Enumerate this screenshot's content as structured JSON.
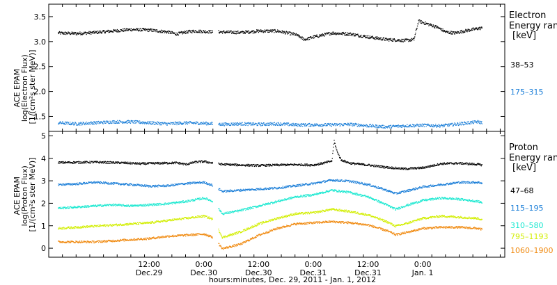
{
  "chart_data": [
    {
      "type": "scatter",
      "panel": "electron",
      "ylabel_lines": [
        "ACE EPAM",
        "log(Electron Flux)",
        "[1/(cm²s ster MeV)]"
      ],
      "ylim": [
        1.2,
        3.75
      ],
      "yticks": [
        1.5,
        2.0,
        2.5,
        3.0,
        3.5
      ],
      "ytick_labels": [
        "1.5",
        "2.0",
        "2.5",
        "3.0",
        "3.5"
      ],
      "legend_title": [
        "Electron",
        "Energy ran"
      ],
      "legend_unit": "[keV]",
      "series": [
        {
          "name": "38–53",
          "color": "#000000",
          "points": [
            [
              -8,
              3.18
            ],
            [
              -4,
              3.17
            ],
            [
              0,
              3.19
            ],
            [
              4,
              3.22
            ],
            [
              8,
              3.25
            ],
            [
              12,
              3.24
            ],
            [
              16,
              3.2
            ],
            [
              18,
              3.16
            ],
            [
              20,
              3.2
            ],
            [
              22,
              3.22
            ],
            [
              24,
              3.21
            ],
            [
              28,
              3.2
            ],
            [
              32,
              3.19
            ],
            [
              36,
              3.22
            ],
            [
              40,
              3.22
            ],
            [
              44,
              3.15
            ],
            [
              46,
              3.05
            ],
            [
              48,
              3.1
            ],
            [
              52,
              3.18
            ],
            [
              56,
              3.16
            ],
            [
              60,
              3.1
            ],
            [
              64,
              3.05
            ],
            [
              68,
              3.03
            ],
            [
              70,
              3.05
            ],
            [
              71,
              3.42
            ],
            [
              73,
              3.36
            ],
            [
              75,
              3.3
            ],
            [
              77,
              3.2
            ],
            [
              79,
              3.18
            ],
            [
              81,
              3.22
            ],
            [
              84,
              3.27
            ],
            [
              85,
              3.28
            ]
          ],
          "gaps_x": [
            26.5
          ]
        },
        {
          "name": "175–315",
          "color": "#1c7fd8",
          "points": [
            [
              -8,
              1.38
            ],
            [
              -4,
              1.36
            ],
            [
              0,
              1.38
            ],
            [
              4,
              1.4
            ],
            [
              8,
              1.4
            ],
            [
              12,
              1.38
            ],
            [
              16,
              1.36
            ],
            [
              20,
              1.38
            ],
            [
              24,
              1.37
            ],
            [
              28,
              1.35
            ],
            [
              32,
              1.36
            ],
            [
              36,
              1.35
            ],
            [
              40,
              1.36
            ],
            [
              44,
              1.34
            ],
            [
              48,
              1.34
            ],
            [
              52,
              1.34
            ],
            [
              56,
              1.35
            ],
            [
              60,
              1.32
            ],
            [
              64,
              1.3
            ],
            [
              68,
              1.32
            ],
            [
              72,
              1.33
            ],
            [
              76,
              1.32
            ],
            [
              80,
              1.36
            ],
            [
              84,
              1.4
            ],
            [
              85,
              1.38
            ]
          ],
          "gaps_x": [
            26.5
          ]
        }
      ]
    },
    {
      "type": "scatter",
      "panel": "proton",
      "ylabel_lines": [
        "ACE EPAM",
        "log(Proton Flux)",
        "[1/(cm²s ster MeV)]"
      ],
      "ylim": [
        -0.4,
        5.2
      ],
      "yticks": [
        0,
        1,
        2,
        3,
        4,
        5
      ],
      "ytick_labels": [
        "0",
        "1",
        "2",
        "3",
        "4",
        "5"
      ],
      "legend_title": [
        "Proton",
        "Energy ran"
      ],
      "legend_unit": "[keV]",
      "series": [
        {
          "name": "47–68",
          "color": "#000000",
          "points": [
            [
              -8,
              3.83
            ],
            [
              0,
              3.85
            ],
            [
              6,
              3.82
            ],
            [
              10,
              3.78
            ],
            [
              14,
              3.8
            ],
            [
              18,
              3.82
            ],
            [
              20,
              3.75
            ],
            [
              22,
              3.85
            ],
            [
              24,
              3.88
            ],
            [
              26,
              3.8
            ],
            [
              28,
              3.75
            ],
            [
              32,
              3.72
            ],
            [
              36,
              3.7
            ],
            [
              40,
              3.72
            ],
            [
              44,
              3.74
            ],
            [
              48,
              3.72
            ],
            [
              50,
              3.8
            ],
            [
              52,
              3.9
            ],
            [
              52.5,
              4.8
            ],
            [
              53,
              4.4
            ],
            [
              54,
              3.95
            ],
            [
              56,
              3.8
            ],
            [
              60,
              3.72
            ],
            [
              64,
              3.62
            ],
            [
              68,
              3.55
            ],
            [
              72,
              3.6
            ],
            [
              76,
              3.78
            ],
            [
              80,
              3.8
            ],
            [
              84,
              3.75
            ],
            [
              85,
              3.72
            ]
          ],
          "gaps_x": [
            26.5
          ]
        },
        {
          "name": "115–195",
          "color": "#1c7fd8",
          "points": [
            [
              -8,
              2.85
            ],
            [
              -4,
              2.88
            ],
            [
              0,
              2.95
            ],
            [
              4,
              2.9
            ],
            [
              8,
              2.85
            ],
            [
              12,
              2.78
            ],
            [
              16,
              2.8
            ],
            [
              20,
              2.9
            ],
            [
              24,
              2.95
            ],
            [
              26,
              2.8
            ],
            [
              28,
              2.55
            ],
            [
              32,
              2.6
            ],
            [
              36,
              2.65
            ],
            [
              40,
              2.7
            ],
            [
              44,
              2.8
            ],
            [
              48,
              2.9
            ],
            [
              52,
              3.05
            ],
            [
              56,
              3.0
            ],
            [
              60,
              2.85
            ],
            [
              64,
              2.6
            ],
            [
              66,
              2.45
            ],
            [
              68,
              2.55
            ],
            [
              72,
              2.75
            ],
            [
              76,
              2.85
            ],
            [
              80,
              2.95
            ],
            [
              84,
              2.95
            ],
            [
              85,
              2.92
            ]
          ],
          "gaps_x": [
            26.5
          ]
        },
        {
          "name": "310–580",
          "color": "#19e8d0",
          "points": [
            [
              -8,
              1.8
            ],
            [
              -4,
              1.85
            ],
            [
              0,
              1.9
            ],
            [
              4,
              1.95
            ],
            [
              8,
              1.9
            ],
            [
              12,
              1.95
            ],
            [
              16,
              2.0
            ],
            [
              20,
              2.1
            ],
            [
              24,
              2.25
            ],
            [
              26,
              2.1
            ],
            [
              28,
              1.55
            ],
            [
              32,
              1.7
            ],
            [
              36,
              1.9
            ],
            [
              40,
              2.1
            ],
            [
              44,
              2.3
            ],
            [
              48,
              2.4
            ],
            [
              52,
              2.6
            ],
            [
              56,
              2.5
            ],
            [
              60,
              2.3
            ],
            [
              64,
              1.95
            ],
            [
              66,
              1.75
            ],
            [
              68,
              1.9
            ],
            [
              72,
              2.15
            ],
            [
              76,
              2.25
            ],
            [
              80,
              2.2
            ],
            [
              84,
              2.1
            ],
            [
              85,
              2.05
            ]
          ],
          "gaps_x": [
            26.5
          ]
        },
        {
          "name": "795–1193",
          "color": "#d2ee00",
          "points": [
            [
              -8,
              0.9
            ],
            [
              -4,
              0.95
            ],
            [
              0,
              1.0
            ],
            [
              4,
              1.05
            ],
            [
              8,
              1.1
            ],
            [
              12,
              1.15
            ],
            [
              16,
              1.25
            ],
            [
              20,
              1.35
            ],
            [
              24,
              1.45
            ],
            [
              26,
              1.3
            ],
            [
              28,
              0.5
            ],
            [
              32,
              0.75
            ],
            [
              36,
              1.1
            ],
            [
              40,
              1.35
            ],
            [
              44,
              1.55
            ],
            [
              48,
              1.6
            ],
            [
              52,
              1.75
            ],
            [
              56,
              1.65
            ],
            [
              60,
              1.5
            ],
            [
              64,
              1.2
            ],
            [
              66,
              1.0
            ],
            [
              68,
              1.1
            ],
            [
              72,
              1.35
            ],
            [
              76,
              1.45
            ],
            [
              80,
              1.4
            ],
            [
              84,
              1.35
            ],
            [
              85,
              1.28
            ]
          ],
          "gaps_x": [
            26.5
          ]
        },
        {
          "name": "1060–1900",
          "color": "#f08a10",
          "points": [
            [
              -8,
              0.3
            ],
            [
              -4,
              0.3
            ],
            [
              0,
              0.3
            ],
            [
              4,
              0.35
            ],
            [
              8,
              0.4
            ],
            [
              12,
              0.45
            ],
            [
              16,
              0.55
            ],
            [
              20,
              0.6
            ],
            [
              24,
              0.65
            ],
            [
              26,
              0.5
            ],
            [
              28,
              0.0
            ],
            [
              32,
              0.2
            ],
            [
              36,
              0.6
            ],
            [
              40,
              0.9
            ],
            [
              44,
              1.1
            ],
            [
              48,
              1.15
            ],
            [
              52,
              1.2
            ],
            [
              56,
              1.15
            ],
            [
              60,
              1.05
            ],
            [
              64,
              0.8
            ],
            [
              66,
              0.62
            ],
            [
              68,
              0.7
            ],
            [
              72,
              0.9
            ],
            [
              76,
              0.95
            ],
            [
              80,
              0.95
            ],
            [
              84,
              0.9
            ],
            [
              85,
              0.85
            ]
          ],
          "gaps_x": [
            26.5
          ]
        }
      ]
    }
  ],
  "x_axis": {
    "range_hours_from_dec29": [
      -10,
      90
    ],
    "ticks": [
      {
        "x": 12,
        "time": "12:00",
        "date": "Dec.29"
      },
      {
        "x": 24,
        "time": "0:00",
        "date": "Dec.30"
      },
      {
        "x": 36,
        "time": "12:00",
        "date": "Dec.30"
      },
      {
        "x": 48,
        "time": "0:00",
        "date": "Dec.31"
      },
      {
        "x": 60,
        "time": "12:00",
        "date": "Dec.31"
      },
      {
        "x": 72,
        "time": "0:00",
        "date": "Jan. 1"
      }
    ],
    "xlabel": "hours:minutes, Dec. 29, 2011 - Jan.  1, 2012"
  }
}
